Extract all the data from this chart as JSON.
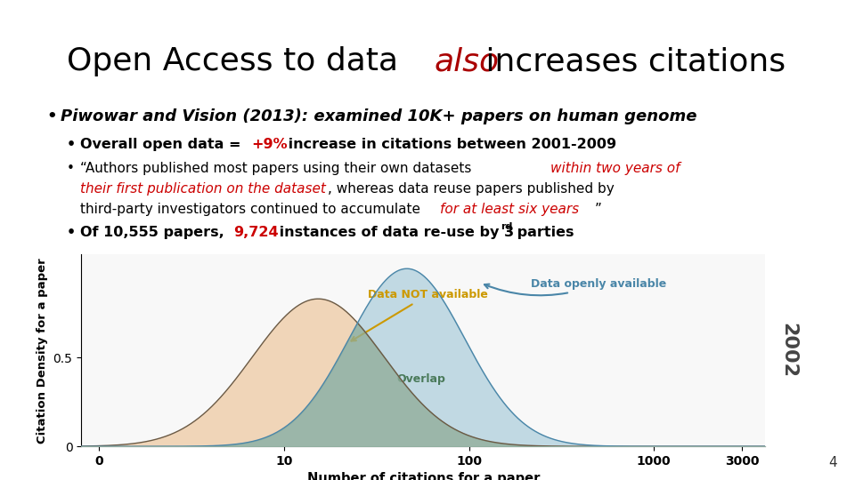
{
  "title_fontsize": 26,
  "bg_color": "#ffffff",
  "slide_number": "4",
  "bullet1": "Piwowar and Vision (2013): examined 10K+ papers on human genome",
  "ylabel": "Citation Density for a paper",
  "xlabel": "Number of citations for a paper",
  "not_avail_color": "#f0d5b8",
  "not_avail_edge": "#6b5a45",
  "avail_color": "#b8d4e0",
  "avail_edge": "#4a86a8",
  "overlap_color": "#8fad9a",
  "annotation_not_avail": "Data NOT available",
  "annotation_not_avail_color": "#cc9900",
  "annotation_avail": "Data openly available",
  "annotation_avail_color": "#4a86a8",
  "annotation_overlap": "Overlap",
  "annotation_overlap_color": "#4a7a5a",
  "watermark": "2002",
  "watermark_color": "#aaaaaa",
  "mu_not": 3.4,
  "sigma_not": 0.82,
  "peak_not": 0.83,
  "mu_avail": 4.35,
  "sigma_avail": 0.72,
  "peak_avail": 1.0
}
